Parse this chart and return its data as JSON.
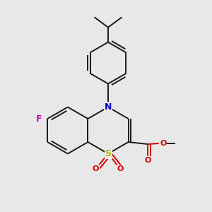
{
  "bg_color": "#e8e8e8",
  "bond_color": "#1a1a1a",
  "bond_width": 1.4,
  "dbo": 0.013,
  "atom_colors": {
    "S": "#b8b800",
    "N": "#0000cc",
    "F": "#cc00cc",
    "O": "#cc0000",
    "C": "#1a1a1a"
  },
  "afs": 9
}
